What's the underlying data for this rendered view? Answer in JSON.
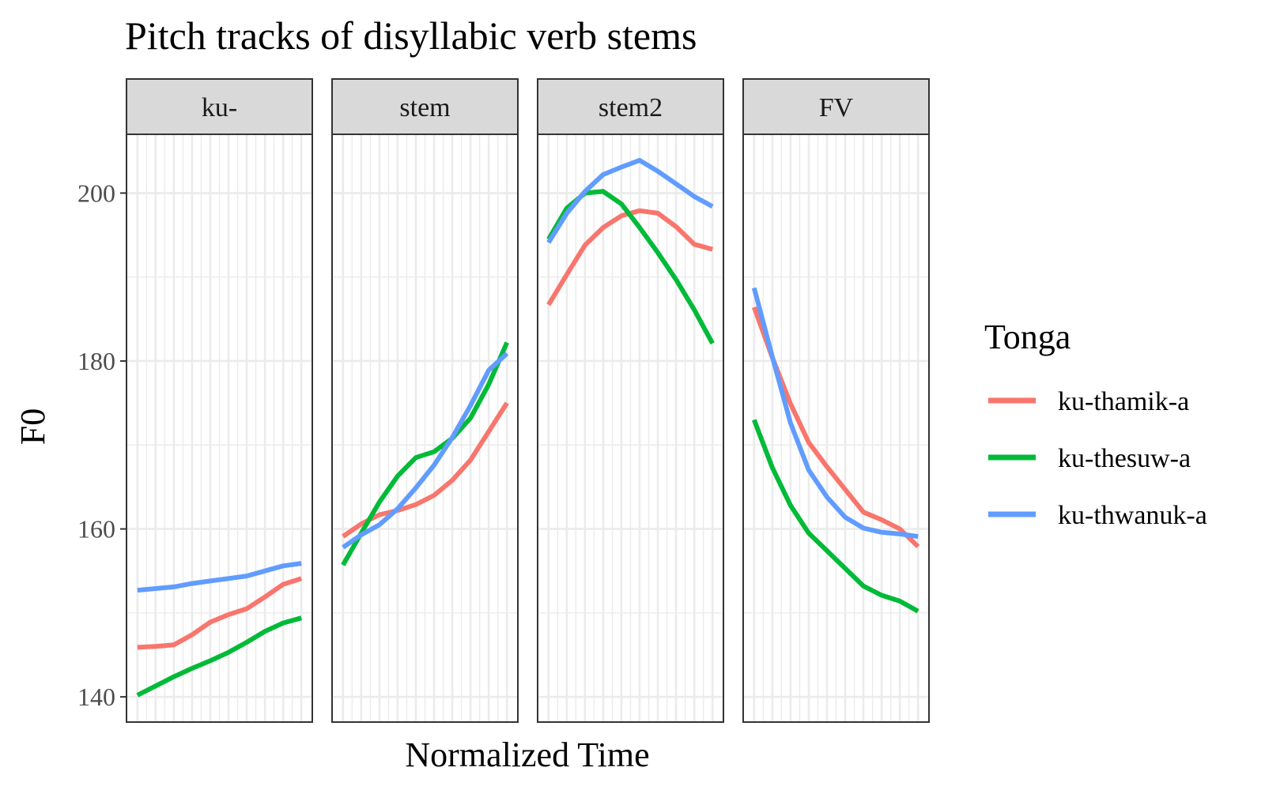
{
  "chart_data": {
    "type": "line",
    "title": "Pitch tracks of disyllabic verb stems",
    "xlabel": "Normalized Time",
    "ylabel": "F0",
    "ylim": [
      137,
      207
    ],
    "yticks": [
      140,
      160,
      180,
      200
    ],
    "grid": true,
    "legend": {
      "title": "Tonga",
      "position": "right"
    },
    "x": [
      1,
      2,
      3,
      4,
      5,
      6,
      7,
      8,
      9,
      10
    ],
    "panels": [
      {
        "label": "ku-",
        "series": [
          {
            "name": "ku-thamik-a",
            "color": "#F8766D",
            "values": [
              145.9,
              146.0,
              146.2,
              147.4,
              148.9,
              149.8,
              150.5,
              151.9,
              153.4,
              154.1
            ]
          },
          {
            "name": "ku-thesuw-a",
            "color": "#00BA38",
            "values": [
              140.2,
              141.3,
              142.4,
              143.4,
              144.3,
              145.3,
              146.5,
              147.8,
              148.8,
              149.4
            ]
          },
          {
            "name": "ku-thwanuk-a",
            "color": "#619CFF",
            "values": [
              152.7,
              152.9,
              153.1,
              153.5,
              153.8,
              154.1,
              154.4,
              155.0,
              155.6,
              155.9
            ]
          }
        ]
      },
      {
        "label": "stem",
        "series": [
          {
            "name": "ku-thamik-a",
            "color": "#F8766D",
            "values": [
              159.1,
              160.6,
              161.7,
              162.2,
              162.9,
              164.0,
              165.8,
              168.2,
              171.6,
              175.0
            ]
          },
          {
            "name": "ku-thesuw-a",
            "color": "#00BA38",
            "values": [
              155.7,
              159.5,
              163.2,
              166.3,
              168.5,
              169.2,
              170.8,
              173.2,
              177.2,
              182.2
            ]
          },
          {
            "name": "ku-thwanuk-a",
            "color": "#619CFF",
            "values": [
              157.8,
              159.3,
              160.5,
              162.4,
              164.9,
              167.6,
              170.9,
              174.7,
              178.9,
              180.9
            ]
          }
        ]
      },
      {
        "label": "stem2",
        "series": [
          {
            "name": "ku-thamik-a",
            "color": "#F8766D",
            "values": [
              186.7,
              190.3,
              193.8,
              195.9,
              197.3,
              197.9,
              197.6,
              196.0,
              193.9,
              193.3
            ]
          },
          {
            "name": "ku-thesuw-a",
            "color": "#00BA38",
            "values": [
              194.5,
              198.2,
              200.0,
              200.2,
              198.7,
              195.9,
              192.9,
              189.7,
              186.1,
              182.1
            ]
          },
          {
            "name": "ku-thwanuk-a",
            "color": "#619CFF",
            "values": [
              194.1,
              197.6,
              200.2,
              202.2,
              203.1,
              203.9,
              202.6,
              201.1,
              199.6,
              198.4
            ]
          }
        ]
      },
      {
        "label": "FV",
        "series": [
          {
            "name": "ku-thamik-a",
            "color": "#F8766D",
            "values": [
              186.4,
              180.4,
              174.9,
              170.3,
              167.4,
              164.7,
              162.0,
              161.1,
              160.0,
              157.9
            ]
          },
          {
            "name": "ku-thesuw-a",
            "color": "#00BA38",
            "values": [
              173.0,
              167.3,
              162.8,
              159.5,
              157.4,
              155.3,
              153.2,
              152.1,
              151.4,
              150.2
            ]
          },
          {
            "name": "ku-thwanuk-a",
            "color": "#619CFF",
            "values": [
              188.7,
              180.5,
              172.6,
              167.0,
              163.8,
              161.4,
              160.1,
              159.6,
              159.4,
              159.1
            ]
          }
        ]
      }
    ]
  }
}
